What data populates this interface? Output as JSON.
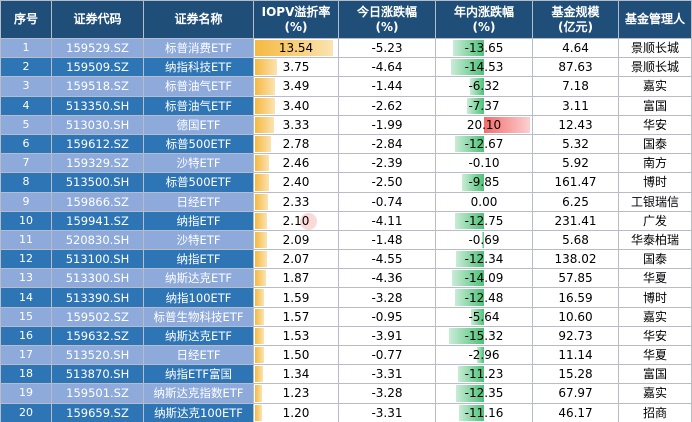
{
  "headers": [
    "序号",
    "证券代码",
    "证券名称",
    "IOPV溢折率\n(%)",
    "今日涨跌幅\n(%)",
    "年内涨跌幅\n(%)",
    "基金规模\n(亿元)",
    "基金管理人"
  ],
  "colors": {
    "header_bg": "#1f4e79",
    "row_light": "#8eaadb",
    "row_dark": "#2e75b6",
    "premium_bar": "#f5b942",
    "negative_bar": "#4dc278",
    "positive_bar": "#f56b6b"
  },
  "rows": [
    {
      "idx": "1",
      "code": "159529.SZ",
      "name": "标普消费ETF",
      "iopv": "13.54",
      "today": "-5.23",
      "ytd": "-13.65",
      "size": "4.64",
      "manager": "景顺长城"
    },
    {
      "idx": "2",
      "code": "159509.SZ",
      "name": "纳指科技ETF",
      "iopv": "3.75",
      "today": "-4.64",
      "ytd": "-14.53",
      "size": "87.63",
      "manager": "景顺长城"
    },
    {
      "idx": "3",
      "code": "159518.SZ",
      "name": "标普油气ETF",
      "iopv": "3.49",
      "today": "-1.44",
      "ytd": "-6.32",
      "size": "7.18",
      "manager": "嘉实"
    },
    {
      "idx": "4",
      "code": "513350.SH",
      "name": "标普油气ETF",
      "iopv": "3.40",
      "today": "-2.62",
      "ytd": "-7.37",
      "size": "3.11",
      "manager": "富国"
    },
    {
      "idx": "5",
      "code": "513030.SH",
      "name": "德国ETF",
      "iopv": "3.33",
      "today": "-1.99",
      "ytd": "20.10",
      "size": "12.43",
      "manager": "华安"
    },
    {
      "idx": "6",
      "code": "159612.SZ",
      "name": "标普500ETF",
      "iopv": "2.78",
      "today": "-2.84",
      "ytd": "-12.67",
      "size": "5.32",
      "manager": "国泰"
    },
    {
      "idx": "7",
      "code": "159329.SZ",
      "name": "沙特ETF",
      "iopv": "2.46",
      "today": "-2.39",
      "ytd": "-0.10",
      "size": "5.92",
      "manager": "南方"
    },
    {
      "idx": "8",
      "code": "513500.SH",
      "name": "标普500ETF",
      "iopv": "2.40",
      "today": "-2.50",
      "ytd": "-9.85",
      "size": "161.47",
      "manager": "博时"
    },
    {
      "idx": "9",
      "code": "159866.SZ",
      "name": "日经ETF",
      "iopv": "2.33",
      "today": "-0.74",
      "ytd": "0.00",
      "size": "6.25",
      "manager": "工银瑞信"
    },
    {
      "idx": "10",
      "code": "159941.SZ",
      "name": "纳指ETF",
      "iopv": "2.10",
      "today": "-4.11",
      "ytd": "-12.75",
      "size": "231.41",
      "manager": "广发"
    },
    {
      "idx": "11",
      "code": "520830.SH",
      "name": "沙特ETF",
      "iopv": "2.09",
      "today": "-1.48",
      "ytd": "-0.69",
      "size": "5.68",
      "manager": "华泰柏瑞"
    },
    {
      "idx": "12",
      "code": "513100.SH",
      "name": "纳指ETF",
      "iopv": "2.07",
      "today": "-4.55",
      "ytd": "-12.34",
      "size": "138.02",
      "manager": "国泰"
    },
    {
      "idx": "13",
      "code": "513300.SH",
      "name": "纳斯达克ETF",
      "iopv": "1.87",
      "today": "-4.36",
      "ytd": "-14.09",
      "size": "57.85",
      "manager": "华夏"
    },
    {
      "idx": "14",
      "code": "513390.SH",
      "name": "纳指100ETF",
      "iopv": "1.59",
      "today": "-3.28",
      "ytd": "-12.48",
      "size": "16.59",
      "manager": "博时"
    },
    {
      "idx": "15",
      "code": "159502.SZ",
      "name": "标普生物科技ETF",
      "iopv": "1.57",
      "today": "-0.95",
      "ytd": "-5.64",
      "size": "10.60",
      "manager": "嘉实"
    },
    {
      "idx": "16",
      "code": "159632.SZ",
      "name": "纳斯达克ETF",
      "iopv": "1.53",
      "today": "-3.91",
      "ytd": "-15.32",
      "size": "92.73",
      "manager": "华安"
    },
    {
      "idx": "17",
      "code": "513520.SH",
      "name": "日经ETF",
      "iopv": "1.50",
      "today": "-0.77",
      "ytd": "-2.96",
      "size": "11.14",
      "manager": "华夏"
    },
    {
      "idx": "18",
      "code": "513870.SH",
      "name": "纳指ETF富国",
      "iopv": "1.34",
      "today": "-3.31",
      "ytd": "-11.23",
      "size": "15.28",
      "manager": "富国"
    },
    {
      "idx": "19",
      "code": "159501.SZ",
      "name": "纳斯达克指数ETF",
      "iopv": "1.23",
      "today": "-3.28",
      "ytd": "-12.35",
      "size": "67.97",
      "manager": "嘉实"
    },
    {
      "idx": "20",
      "code": "159659.SZ",
      "name": "纳斯达克100ETF",
      "iopv": "1.20",
      "today": "-3.31",
      "ytd": "-11.16",
      "size": "46.17",
      "manager": "招商"
    }
  ]
}
